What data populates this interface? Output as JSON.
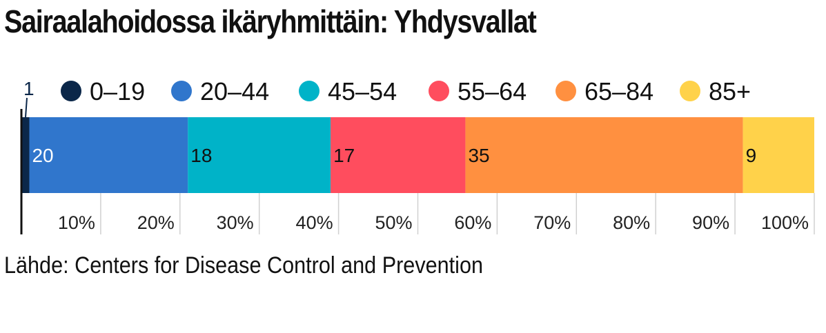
{
  "chart_data": {
    "type": "bar",
    "orientation": "horizontal-stacked",
    "title": "Sairaalahoidossa ikäryhmittäin: Yhdysvallat",
    "source": "Lähde: Centers for Disease Control and Prevention",
    "categories": [
      "Yhdysvallat"
    ],
    "xlim": [
      0,
      100
    ],
    "x_ticks": [
      "10%",
      "20%",
      "30%",
      "40%",
      "50%",
      "60%",
      "70%",
      "80%",
      "90%",
      "100%"
    ],
    "legend_position": "top",
    "grid": true,
    "series": [
      {
        "name": "0–19",
        "values": [
          1
        ],
        "label": "1",
        "color": "#0b2749",
        "label_color": "#0b2749"
      },
      {
        "name": "20–44",
        "values": [
          20
        ],
        "label": "20",
        "color": "#3076cc",
        "label_color": "#ffffff"
      },
      {
        "name": "45–54",
        "values": [
          18
        ],
        "label": "18",
        "color": "#00b3c8",
        "label_color": "#111111"
      },
      {
        "name": "55–64",
        "values": [
          17
        ],
        "label": "17",
        "color": "#ff4d5e",
        "label_color": "#111111"
      },
      {
        "name": "65–84",
        "values": [
          35
        ],
        "label": "35",
        "color": "#ff9040",
        "label_color": "#111111"
      },
      {
        "name": "85+",
        "values": [
          9
        ],
        "label": "9",
        "color": "#ffd24a",
        "label_color": "#111111"
      }
    ]
  }
}
